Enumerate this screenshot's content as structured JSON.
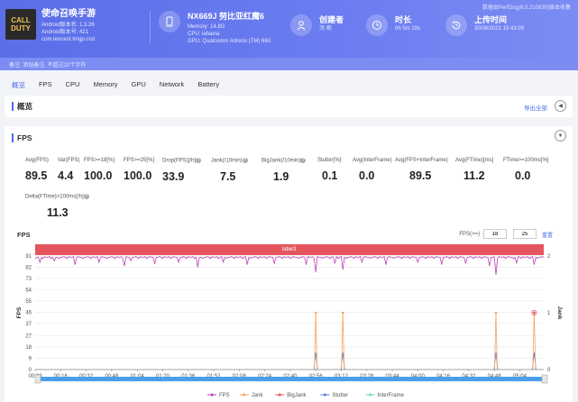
{
  "header": {
    "top_note": "数据由PerfDog(6.0.210830)版本收集",
    "app": {
      "icon_text": "CALL DUTY",
      "name": "使命召唤手游",
      "android_version_name": "Android版本名: 1.3.26",
      "android_version_code": "Android版本号: 421",
      "package": "com.tencent.tmgp.cod"
    },
    "device": {
      "name": "NX669J 努比亚红魔6",
      "memory": "Memory: 14.8G",
      "cpu": "CPU: lahaina",
      "gpu": "GPU: Qualcomm Adreno (TM) 660"
    },
    "creator": {
      "label": "创建者",
      "value": "汤 刚"
    },
    "duration": {
      "label": "时长",
      "value": "0h 5m 19s"
    },
    "upload": {
      "label": "上传时间",
      "value": "30/08/2021 15:43:09"
    }
  },
  "remark": "备注: 添加备注, 不超过20个字符",
  "tabs": [
    "概览",
    "FPS",
    "CPU",
    "Memory",
    "GPU",
    "Network",
    "Battery"
  ],
  "overview": {
    "title": "概览",
    "export": "导出全部"
  },
  "fps_card": {
    "title": "FPS",
    "metrics": [
      {
        "label": "Avg(FPS)",
        "value": "89.5"
      },
      {
        "label": "Var(FPS)",
        "value": "4.4"
      },
      {
        "label": "FPS>=18[%]",
        "value": "100.0"
      },
      {
        "label": "FPS>=25[%]",
        "value": "100.0"
      },
      {
        "label": "Drop(FPS)[/h]",
        "value": "33.9"
      },
      {
        "label": "Jank(/10min)",
        "value": "7.5"
      },
      {
        "label": "BigJank(/10min)",
        "value": "1.9"
      },
      {
        "label": "Stutter[%]",
        "value": "0.1"
      },
      {
        "label": "Avg(InterFrame)",
        "value": "0.0"
      },
      {
        "label": "Avg(FPS+InterFrame)",
        "value": "89.5"
      },
      {
        "label": "Avg(FTime)[ms]",
        "value": "11.2"
      },
      {
        "label": "FTime>=100ms[%]",
        "value": "0.0"
      },
      {
        "label": "Delta(FTime)>100ms[/h]",
        "value": "11.3"
      }
    ],
    "chart_title": "FPS",
    "filter_label": "FPS(>=)",
    "filter_a": "18",
    "filter_b": "25",
    "reset": "重置",
    "band_label": "label1"
  },
  "colors": {
    "fps": "#c03cb6",
    "jank": "#f5a35c",
    "bigjank": "#e4555d",
    "stutter": "#5b7bd8",
    "interframe": "#6fd6c9"
  },
  "chart_data": {
    "type": "line",
    "title": "FPS",
    "ylabel": "FPS",
    "y2label": "Jank",
    "ylim": [
      0,
      91
    ],
    "y2lim": [
      0,
      2
    ],
    "yticks": [
      0,
      9,
      18,
      27,
      37,
      46,
      55,
      64,
      73,
      82,
      91
    ],
    "y2ticks": [
      0,
      1,
      2
    ],
    "xlim": [
      0,
      319
    ],
    "x_tick_labels": [
      "00:00",
      "00:16",
      "00:32",
      "00:48",
      "01:04",
      "01:20",
      "01:36",
      "01:52",
      "02:08",
      "02:24",
      "02:40",
      "02:56",
      "03:12",
      "03:28",
      "03:44",
      "04:00",
      "04:16",
      "04:32",
      "04:48",
      "05:04"
    ],
    "x_tick_seconds": [
      0,
      16,
      32,
      48,
      64,
      80,
      96,
      112,
      128,
      144,
      160,
      176,
      192,
      208,
      224,
      240,
      256,
      272,
      288,
      304
    ],
    "series": [
      {
        "name": "FPS",
        "baseline": 90,
        "dips": [
          [
            3,
            86
          ],
          [
            12,
            87
          ],
          [
            25,
            84
          ],
          [
            40,
            86
          ],
          [
            56,
            83
          ],
          [
            60,
            87
          ],
          [
            75,
            85
          ],
          [
            90,
            86
          ],
          [
            102,
            82
          ],
          [
            118,
            86
          ],
          [
            133,
            84
          ],
          [
            150,
            85
          ],
          [
            170,
            84
          ],
          [
            176,
            78
          ],
          [
            188,
            85
          ],
          [
            193,
            80
          ],
          [
            205,
            86
          ],
          [
            220,
            84
          ],
          [
            240,
            86
          ],
          [
            255,
            84
          ],
          [
            270,
            85
          ],
          [
            285,
            83
          ],
          [
            289,
            76
          ],
          [
            302,
            85
          ],
          [
            313,
            84
          ]
        ]
      },
      {
        "name": "Jank",
        "events": [
          176,
          193,
          289,
          313
        ],
        "value": 1
      },
      {
        "name": "BigJank",
        "events": [
          313
        ],
        "value": 1
      },
      {
        "name": "Stutter",
        "events": [
          176,
          193,
          289,
          313
        ],
        "value": 0.1
      },
      {
        "name": "InterFrame",
        "values": "0"
      }
    ],
    "legend": [
      "FPS",
      "Jank",
      "BigJank",
      "Stutter",
      "InterFrame"
    ],
    "legend_position": "bottom"
  }
}
